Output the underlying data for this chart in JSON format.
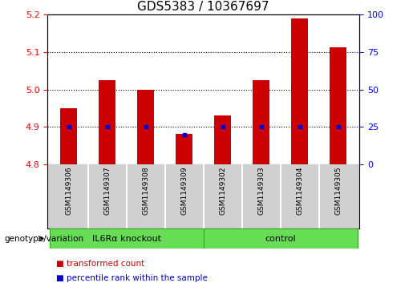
{
  "title": "GDS5383 / 10367697",
  "samples": [
    "GSM1149306",
    "GSM1149307",
    "GSM1149308",
    "GSM1149309",
    "GSM1149302",
    "GSM1149303",
    "GSM1149304",
    "GSM1149305"
  ],
  "transformed_counts": [
    4.95,
    5.025,
    5.0,
    4.882,
    4.93,
    5.025,
    5.19,
    5.113
  ],
  "percentile_ranks": [
    25,
    25,
    25,
    20,
    25,
    25,
    25,
    25
  ],
  "ylim_left": [
    4.8,
    5.2
  ],
  "ylim_right": [
    0,
    100
  ],
  "yticks_left": [
    4.8,
    4.9,
    5.0,
    5.1,
    5.2
  ],
  "yticks_right": [
    0,
    25,
    50,
    75,
    100
  ],
  "bar_color": "#cc0000",
  "percentile_color": "#0000cc",
  "bar_bottom": 4.8,
  "groups": [
    {
      "label": "IL6Rα knockout",
      "indices": [
        0,
        1,
        2,
        3
      ],
      "color": "#66dd55"
    },
    {
      "label": "control",
      "indices": [
        4,
        5,
        6,
        7
      ],
      "color": "#66dd55"
    }
  ],
  "group_label_prefix": "genotype/variation",
  "legend_items": [
    {
      "label": "transformed count",
      "color": "#cc0000"
    },
    {
      "label": "percentile rank within the sample",
      "color": "#0000cc"
    }
  ],
  "plot_bg": "#ffffff",
  "label_area_color": "#d0d0d0",
  "title_fontsize": 11,
  "tick_fontsize": 8,
  "bar_width": 0.45
}
